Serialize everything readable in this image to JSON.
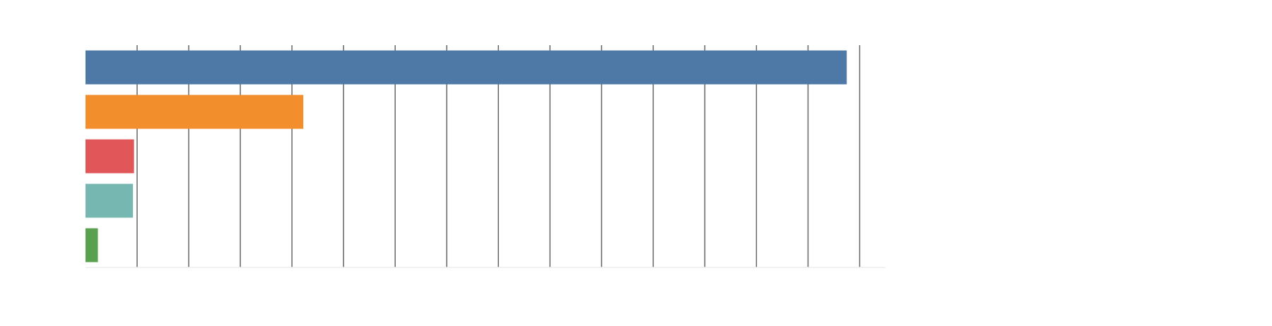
{
  "chart_data": {
    "type": "bar",
    "orientation": "horizontal",
    "title": "",
    "xlabel": "",
    "ylabel": "",
    "categories": [
      "",
      "",
      "",
      "",
      ""
    ],
    "values": [
      14.75,
      4.22,
      0.94,
      0.92,
      0.24
    ],
    "colors": [
      "#4e79a7",
      "#f28e2b",
      "#e15759",
      "#76b7b2",
      "#59a14f"
    ],
    "xlim": [
      0,
      15.5
    ],
    "xticks": [
      1,
      2,
      3,
      4,
      5,
      6,
      7,
      8,
      9,
      10,
      11,
      12,
      13,
      14,
      15
    ],
    "tick_labels_shown": false,
    "grid": true,
    "legend": "none"
  }
}
